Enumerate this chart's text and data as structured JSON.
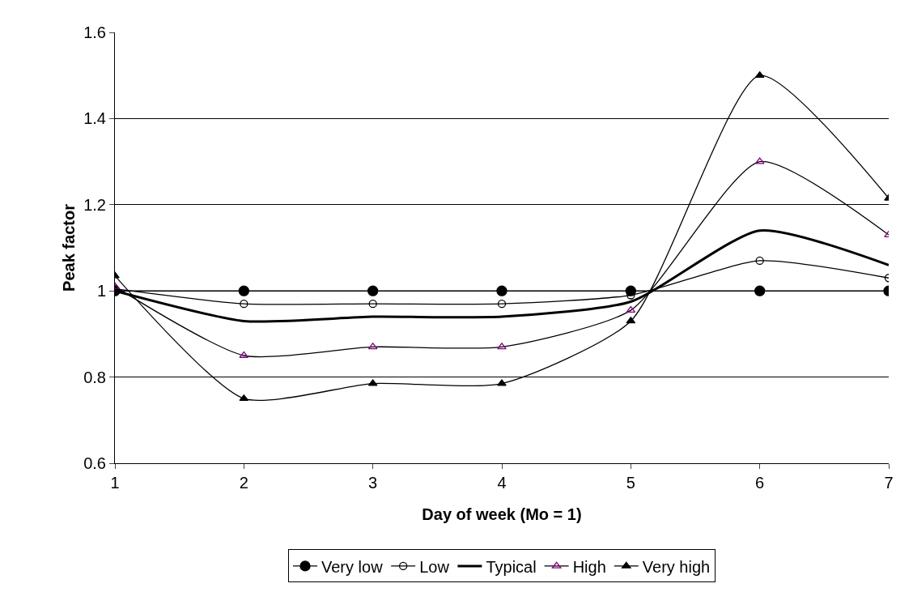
{
  "chart_data": {
    "type": "line",
    "xlabel": "Day of week (Mo = 1)",
    "ylabel": "Peak factor",
    "x": [
      1,
      2,
      3,
      4,
      5,
      6,
      7
    ],
    "xlim": [
      1,
      7
    ],
    "xticks": [
      1,
      2,
      3,
      4,
      5,
      6,
      7
    ],
    "ylim": [
      0.6,
      1.6
    ],
    "yticks": [
      0.6,
      0.8,
      1,
      1.2,
      1.4,
      1.6
    ],
    "grid": "y",
    "legend": "bottom",
    "line_style": "solid",
    "series": [
      {
        "name": "Very low",
        "color": "#000000",
        "marker": "circle",
        "values": [
          1,
          1,
          1,
          1,
          1,
          1,
          1
        ]
      },
      {
        "name": "Low",
        "color": "#000000",
        "marker": "circle-open",
        "values": [
          1.005,
          0.97,
          0.97,
          0.97,
          0.99,
          1.07,
          1.03
        ]
      },
      {
        "name": "Typical",
        "color": "#000000",
        "marker": "none",
        "values": [
          1,
          0.93,
          0.94,
          0.94,
          0.975,
          1.14,
          1.06
        ]
      },
      {
        "name": "High",
        "color": "#800080",
        "marker": "triangle-open",
        "values": [
          1.01,
          0.85,
          0.87,
          0.87,
          0.955,
          1.3,
          1.13
        ]
      },
      {
        "name": "Very high",
        "color": "#000000",
        "marker": "triangle",
        "values": [
          1.035,
          0.75,
          0.785,
          0.785,
          0.93,
          1.5,
          1.215
        ]
      }
    ]
  }
}
